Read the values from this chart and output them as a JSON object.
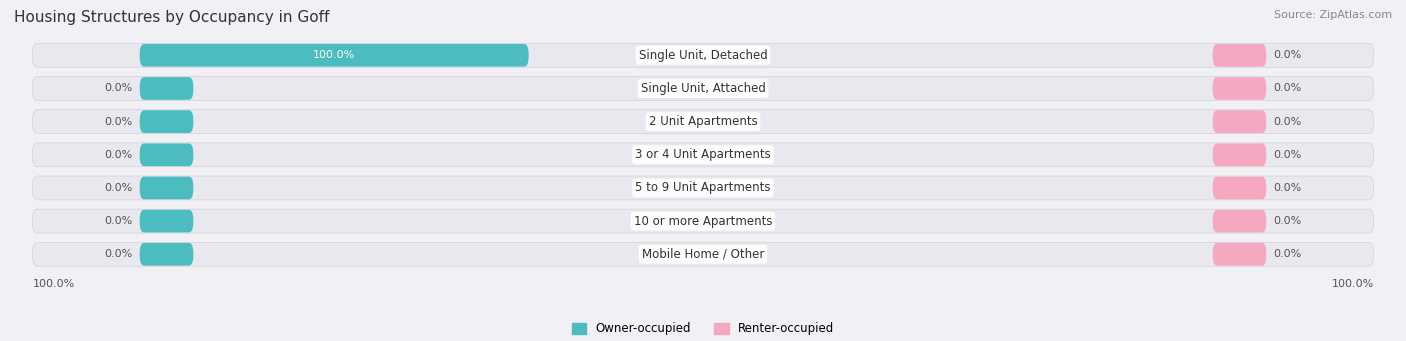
{
  "title": "Housing Structures by Occupancy in Goff",
  "source": "Source: ZipAtlas.com",
  "categories": [
    "Single Unit, Detached",
    "Single Unit, Attached",
    "2 Unit Apartments",
    "3 or 4 Unit Apartments",
    "5 to 9 Unit Apartments",
    "10 or more Apartments",
    "Mobile Home / Other"
  ],
  "owner_values": [
    100.0,
    0.0,
    0.0,
    0.0,
    0.0,
    0.0,
    0.0
  ],
  "renter_values": [
    0.0,
    0.0,
    0.0,
    0.0,
    0.0,
    0.0,
    0.0
  ],
  "owner_color": "#4BBDC0",
  "renter_color": "#F5A8C0",
  "row_fill_color": "#E8E8EE",
  "row_edge_color": "#D0D0DA",
  "bg_color": "#F0F0F5",
  "label_left_pct": "100.0%",
  "label_right_pct": "100.0%",
  "title_fontsize": 11,
  "source_fontsize": 8,
  "label_fontsize": 8,
  "cat_fontsize": 8.5,
  "legend_fontsize": 8.5,
  "owner_label_color_full": "#FFFFFF",
  "owner_label_color_zero": "#555555",
  "renter_label_color": "#555555"
}
